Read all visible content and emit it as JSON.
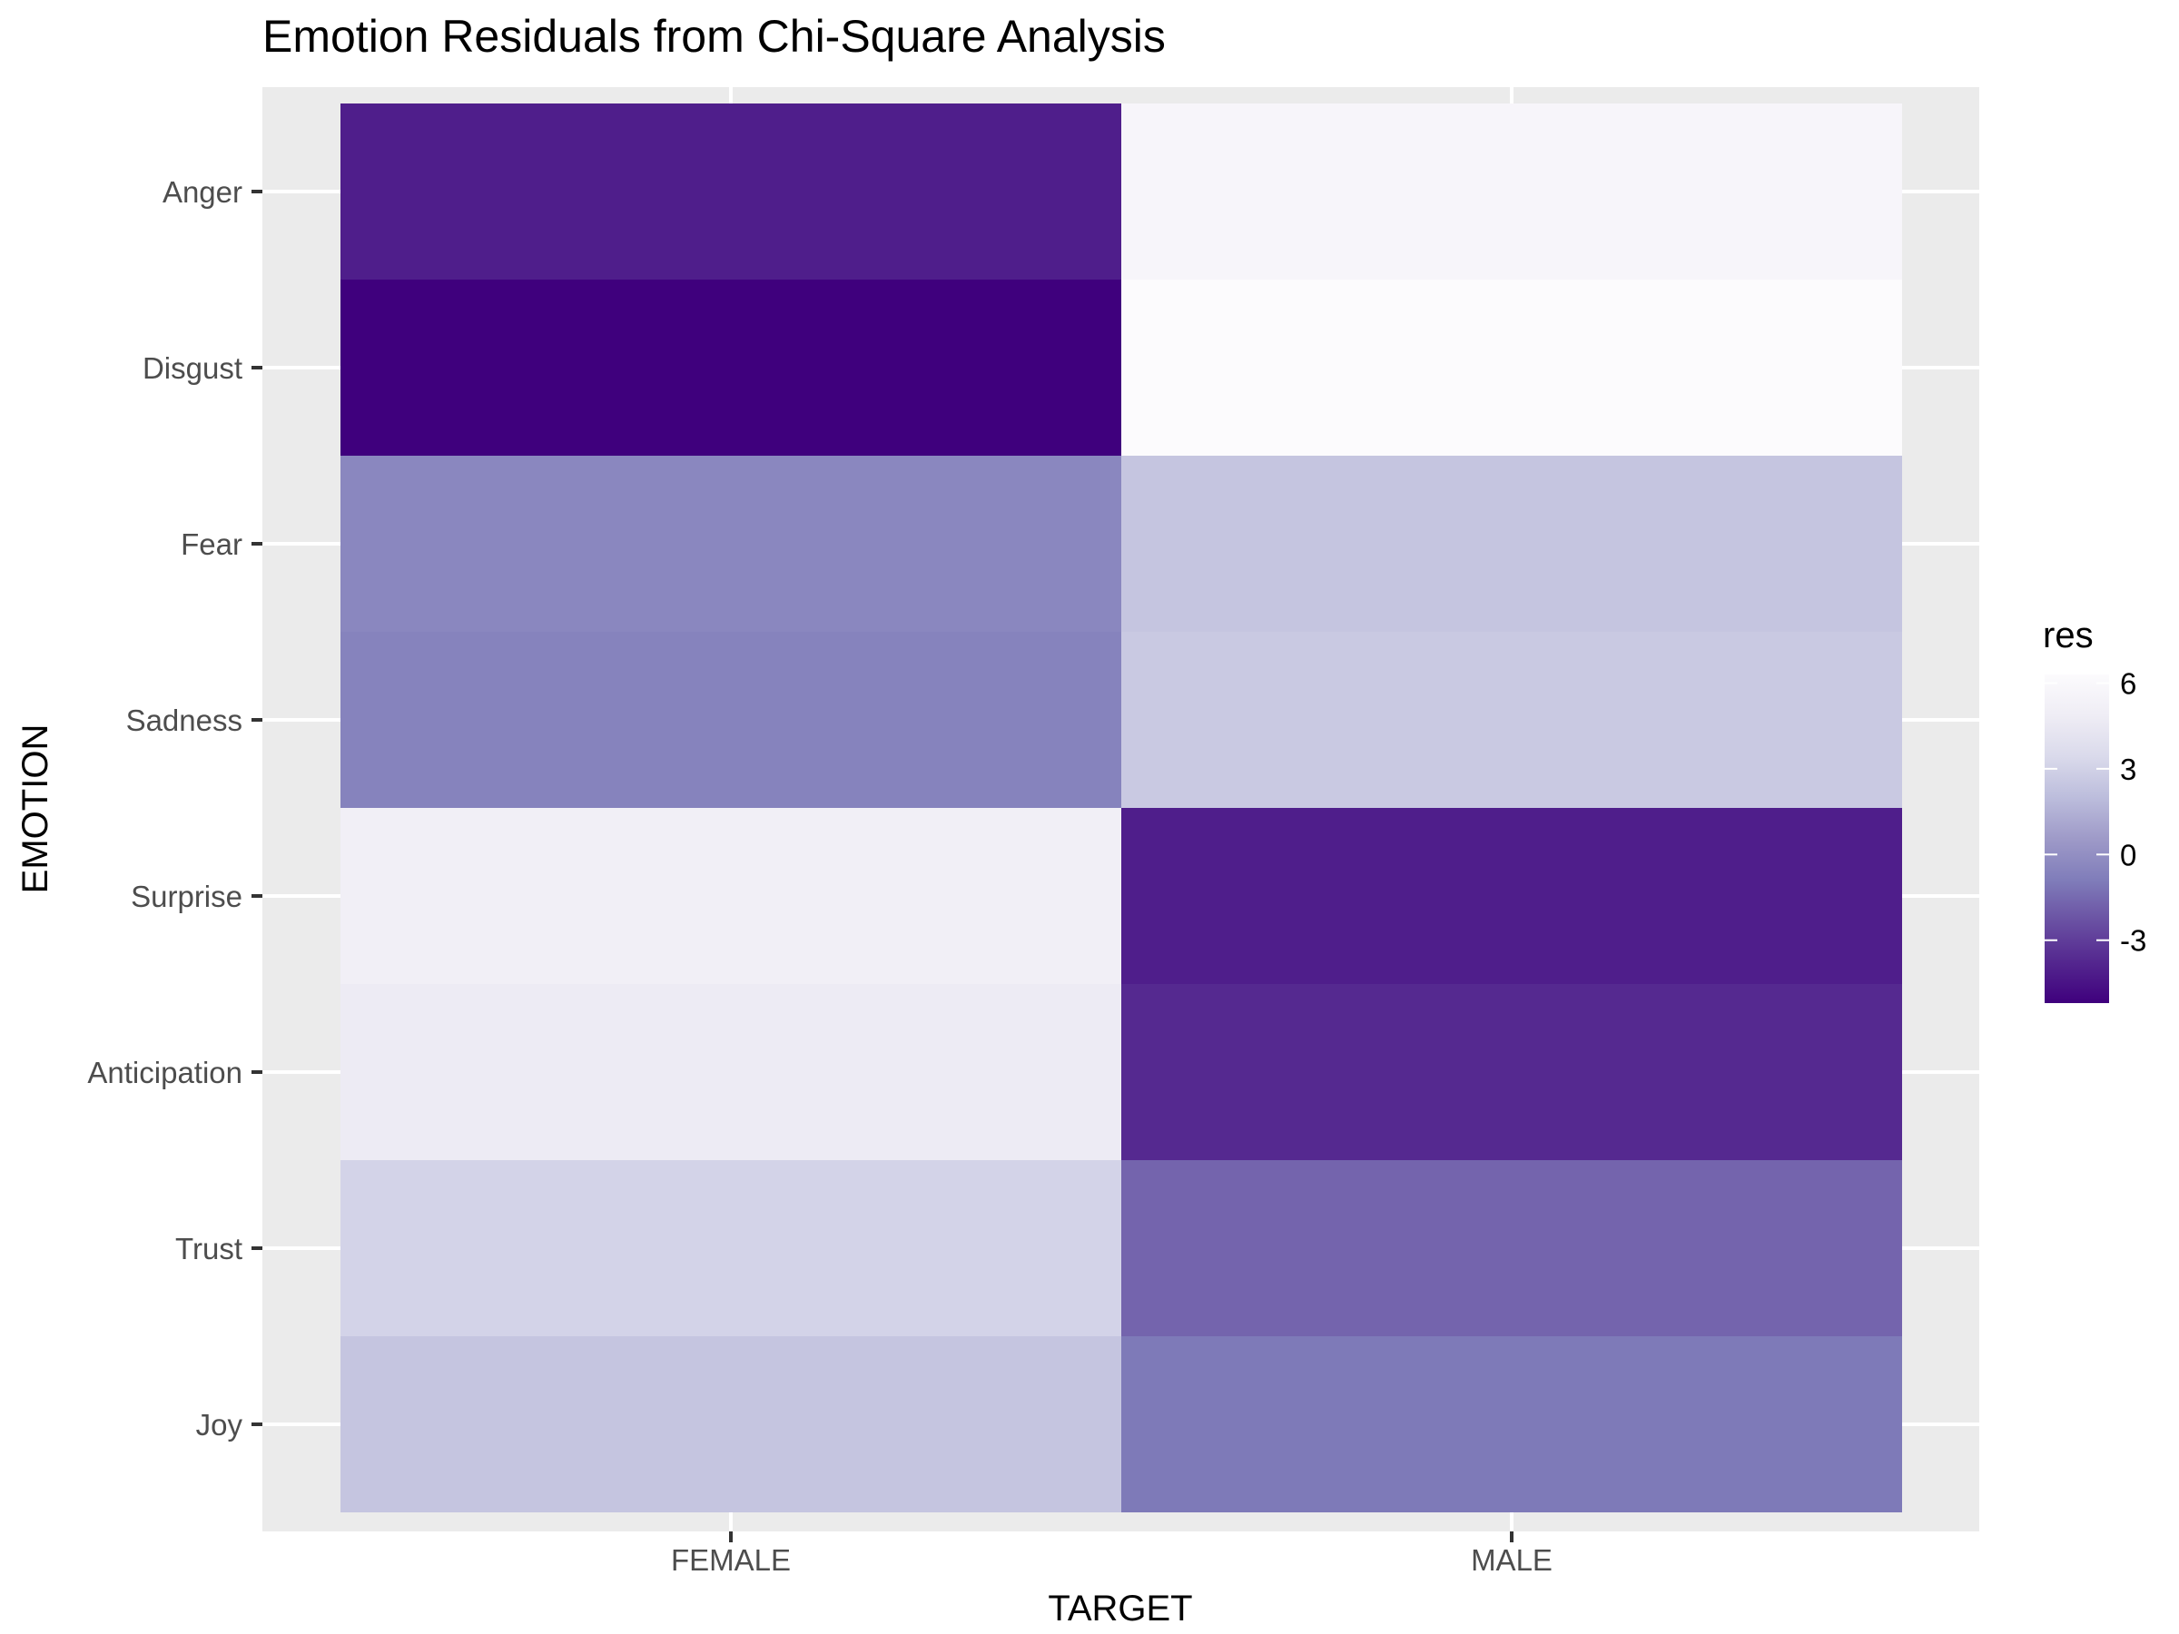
{
  "chart_data": {
    "type": "heatmap",
    "title": "Emotion Residuals from Chi-Square Analysis",
    "xlabel": "TARGET",
    "ylabel": "EMOTION",
    "x_categories": [
      "FEMALE",
      "MALE"
    ],
    "y_categories": [
      "Anger",
      "Disgust",
      "Fear",
      "Sadness",
      "Surprise",
      "Anticipation",
      "Trust",
      "Joy"
    ],
    "values": [
      [
        -4.1,
        5.7
      ],
      [
        -5.2,
        6.3
      ],
      [
        -0.4,
        2.4
      ],
      [
        -0.6,
        2.6
      ],
      [
        5.1,
        -4.1
      ],
      [
        4.7,
        -3.7
      ],
      [
        3.1,
        -1.7
      ],
      [
        2.4,
        -1.0
      ]
    ],
    "legend": {
      "title": "res",
      "ticks": [
        -3,
        0,
        3,
        6
      ],
      "tick_labels": [
        "-3",
        "0",
        "3",
        "6"
      ],
      "range": [
        -5.2,
        6.3
      ],
      "low_color": "#3f007d",
      "high_color": "#fcfbfd",
      "palette": [
        "#3f007d",
        "#54278f",
        "#6a51a3",
        "#807dba",
        "#9e9ac8",
        "#bcbddc",
        "#dadaeb",
        "#efedf5",
        "#fcfbfd"
      ],
      "position": "right"
    },
    "panel_background": "#ebebeb",
    "grid": true
  }
}
